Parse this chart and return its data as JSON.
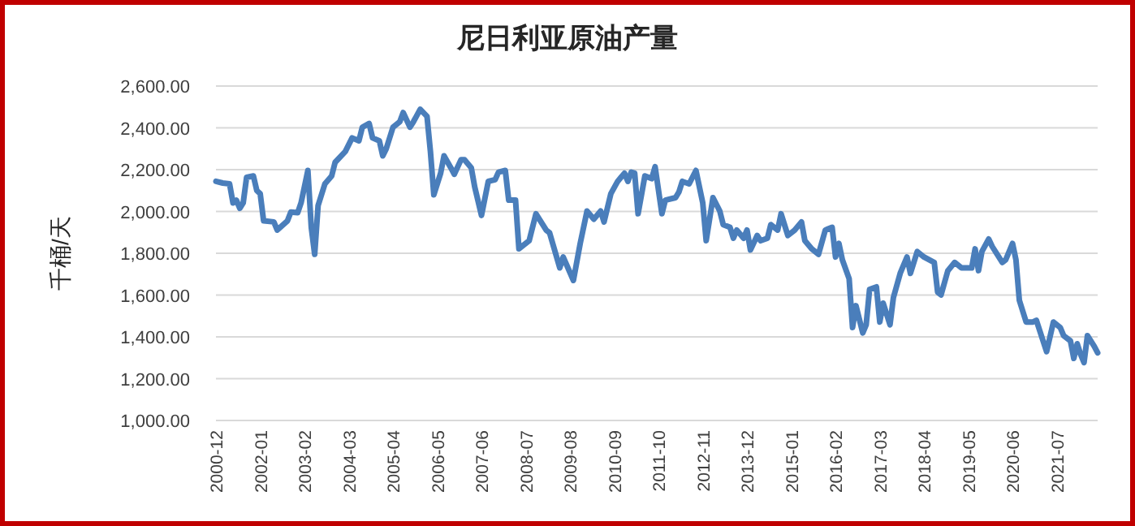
{
  "chart_data": {
    "type": "line",
    "title": "尼日利亚原油产量",
    "ylabel": "千桶/天",
    "grid": "y",
    "line_style": "solid",
    "marker": "none",
    "xlim": [
      "2000-12",
      "2022-07"
    ],
    "xticks": [
      "2000-12",
      "2002-01",
      "2003-02",
      "2004-03",
      "2005-04",
      "2006-05",
      "2007-06",
      "2008-07",
      "2009-08",
      "2010-09",
      "2011-10",
      "2012-11",
      "2013-12",
      "2015-01",
      "2016-02",
      "2017-03",
      "2018-04",
      "2019-05",
      "2020-06",
      "2021-07"
    ],
    "ylim": [
      1000,
      2600
    ],
    "yticks": [
      {
        "value": 1000,
        "label": "1,000.00"
      },
      {
        "value": 1200,
        "label": "1,200.00"
      },
      {
        "value": 1400,
        "label": "1,400.00"
      },
      {
        "value": 1600,
        "label": "1,600.00"
      },
      {
        "value": 1800,
        "label": "1,800.00"
      },
      {
        "value": 2000,
        "label": "2,000.00"
      },
      {
        "value": 2200,
        "label": "2,200.00"
      },
      {
        "value": 2400,
        "label": "2,400.00"
      },
      {
        "value": 2600,
        "label": "2,600.00"
      }
    ],
    "series": [
      {
        "color": "#4a7ebb",
        "x": [
          "2000-12",
          "2001-02",
          "2001-04",
          "2001-05",
          "2001-06",
          "2001-07",
          "2001-08",
          "2001-09",
          "2001-11",
          "2001-12",
          "2002-01",
          "2002-02",
          "2002-05",
          "2002-06",
          "2002-09",
          "2002-10",
          "2002-12",
          "2003-01",
          "2003-03",
          "2003-04",
          "2003-05",
          "2003-06",
          "2003-08",
          "2003-10",
          "2003-11",
          "2004-02",
          "2004-04",
          "2004-06",
          "2004-07",
          "2004-09",
          "2004-10",
          "2004-12",
          "2005-01",
          "2005-02",
          "2005-04",
          "2005-06",
          "2005-07",
          "2005-09",
          "2005-10",
          "2005-12",
          "2006-02",
          "2006-03",
          "2006-04",
          "2006-06",
          "2006-07",
          "2006-09",
          "2006-10",
          "2006-12",
          "2007-01",
          "2007-03",
          "2007-04",
          "2007-06",
          "2007-08",
          "2007-10",
          "2007-11",
          "2008-01",
          "2008-02",
          "2008-04",
          "2008-05",
          "2008-08",
          "2008-10",
          "2009-01",
          "2009-02",
          "2009-05",
          "2009-06",
          "2009-09",
          "2009-11",
          "2010-01",
          "2010-03",
          "2010-05",
          "2010-06",
          "2010-08",
          "2010-10",
          "2010-12",
          "2011-01",
          "2011-02",
          "2011-03",
          "2011-04",
          "2011-06",
          "2011-08",
          "2011-09",
          "2011-11",
          "2011-12",
          "2012-03",
          "2012-04",
          "2012-05",
          "2012-07",
          "2012-09",
          "2012-11",
          "2012-12",
          "2013-02",
          "2013-04",
          "2013-05",
          "2013-07",
          "2013-08",
          "2013-09",
          "2013-11",
          "2013-12",
          "2014-01",
          "2014-03",
          "2014-04",
          "2014-06",
          "2014-07",
          "2014-09",
          "2014-10",
          "2014-12",
          "2015-02",
          "2015-04",
          "2015-05",
          "2015-07",
          "2015-09",
          "2015-11",
          "2016-01",
          "2016-02",
          "2016-03",
          "2016-04",
          "2016-06",
          "2016-07",
          "2016-08",
          "2016-10",
          "2016-11",
          "2016-12",
          "2017-02",
          "2017-03",
          "2017-04",
          "2017-06",
          "2017-07",
          "2017-09",
          "2017-11",
          "2017-12",
          "2018-02",
          "2018-04",
          "2018-07",
          "2018-08",
          "2018-09",
          "2018-11",
          "2019-01",
          "2019-03",
          "2019-06",
          "2019-07",
          "2019-08",
          "2019-09",
          "2019-11",
          "2019-12",
          "2020-03",
          "2020-04",
          "2020-06",
          "2020-07",
          "2020-08",
          "2020-10",
          "2020-12",
          "2021-01",
          "2021-04",
          "2021-06",
          "2021-08",
          "2021-09",
          "2021-11",
          "2021-12",
          "2022-01",
          "2022-02",
          "2022-03",
          "2022-04",
          "2022-06",
          "2022-07"
        ],
        "values": [
          2144,
          2136,
          2132,
          2041,
          2054,
          2015,
          2041,
          2163,
          2170,
          2100,
          2085,
          1955,
          1950,
          1911,
          1955,
          1997,
          1994,
          2041,
          2196,
          1924,
          1795,
          2028,
          2132,
          2170,
          2235,
          2287,
          2352,
          2338,
          2403,
          2421,
          2352,
          2338,
          2266,
          2299,
          2403,
          2429,
          2473,
          2403,
          2429,
          2489,
          2455,
          2287,
          2080,
          2183,
          2266,
          2209,
          2178,
          2248,
          2248,
          2209,
          2118,
          1981,
          2144,
          2152,
          2188,
          2196,
          2054,
          2054,
          1821,
          1860,
          1989,
          1911,
          1898,
          1730,
          1782,
          1670,
          1847,
          2002,
          1963,
          2002,
          1950,
          2085,
          2144,
          2183,
          2144,
          2188,
          2183,
          1989,
          2170,
          2157,
          2214,
          1989,
          2054,
          2066,
          2093,
          2144,
          2132,
          2196,
          2041,
          1860,
          2066,
          2002,
          1937,
          1924,
          1872,
          1911,
          1872,
          1911,
          1816,
          1885,
          1860,
          1872,
          1937,
          1911,
          1989,
          1885,
          1911,
          1950,
          1860,
          1821,
          1795,
          1911,
          1924,
          1782,
          1847,
          1769,
          1678,
          1445,
          1549,
          1419,
          1458,
          1627,
          1639,
          1471,
          1561,
          1458,
          1588,
          1704,
          1782,
          1704,
          1808,
          1782,
          1756,
          1614,
          1601,
          1717,
          1756,
          1730,
          1730,
          1821,
          1717,
          1808,
          1868,
          1833,
          1756,
          1769,
          1847,
          1769,
          1575,
          1471,
          1471,
          1479,
          1329,
          1471,
          1445,
          1406,
          1381,
          1297,
          1367,
          1316,
          1277,
          1406,
          1355,
          1324
        ]
      }
    ]
  }
}
